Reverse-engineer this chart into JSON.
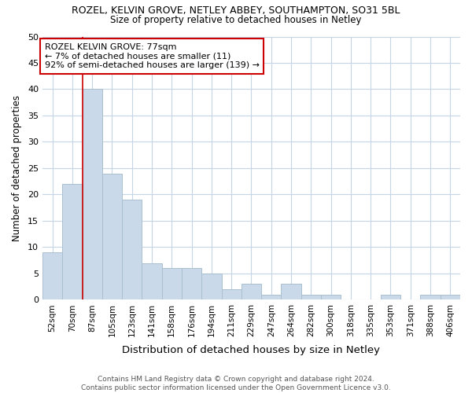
{
  "title": "ROZEL, KELVIN GROVE, NETLEY ABBEY, SOUTHAMPTON, SO31 5BL",
  "subtitle": "Size of property relative to detached houses in Netley",
  "xlabel": "Distribution of detached houses by size in Netley",
  "ylabel": "Number of detached properties",
  "categories": [
    "52sqm",
    "70sqm",
    "87sqm",
    "105sqm",
    "123sqm",
    "141sqm",
    "158sqm",
    "176sqm",
    "194sqm",
    "211sqm",
    "229sqm",
    "247sqm",
    "264sqm",
    "282sqm",
    "300sqm",
    "318sqm",
    "335sqm",
    "353sqm",
    "371sqm",
    "388sqm",
    "406sqm"
  ],
  "values": [
    9,
    22,
    40,
    24,
    19,
    7,
    6,
    6,
    5,
    2,
    3,
    1,
    3,
    1,
    1,
    0,
    0,
    1,
    0,
    1,
    1
  ],
  "bar_color": "#c9d9ea",
  "bar_edgecolor": "#aabfd0",
  "vline_x_index": 1.5,
  "vline_color": "#cc0000",
  "annotation_line1": "ROZEL KELVIN GROVE: 77sqm",
  "annotation_line2": "← 7% of detached houses are smaller (11)",
  "annotation_line3": "92% of semi-detached houses are larger (139) →",
  "annotation_box_edgecolor": "#cc0000",
  "ylim": [
    0,
    50
  ],
  "yticks": [
    0,
    5,
    10,
    15,
    20,
    25,
    30,
    35,
    40,
    45,
    50
  ],
  "footer": "Contains HM Land Registry data © Crown copyright and database right 2024.\nContains public sector information licensed under the Open Government Licence v3.0.",
  "background_color": "#ffffff",
  "grid_color": "#c5d5e5"
}
